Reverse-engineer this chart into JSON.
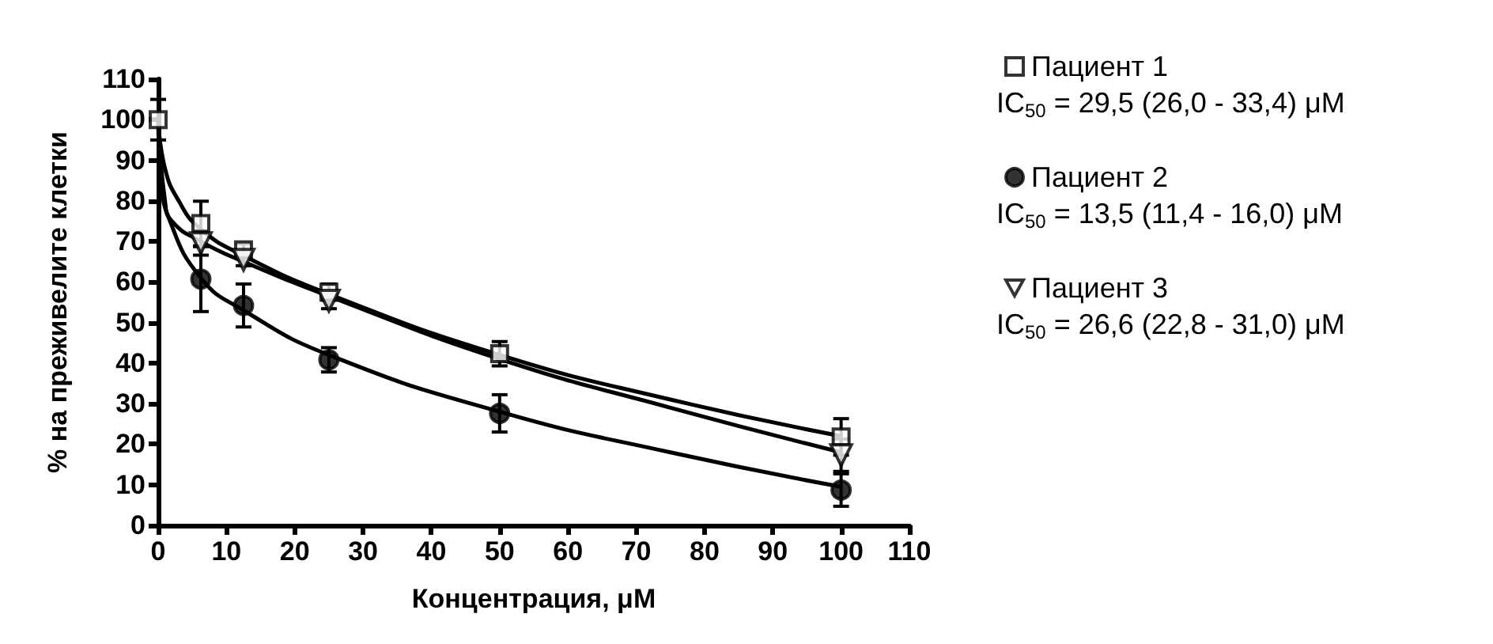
{
  "chart_data": {
    "type": "scatter",
    "xlabel": "Концентрация, μM",
    "ylabel": "% на преживелите клетки",
    "xlim": [
      0,
      110
    ],
    "xticks": [
      0,
      10,
      20,
      30,
      40,
      50,
      60,
      70,
      80,
      90,
      100,
      110
    ],
    "ylim": [
      0,
      110
    ],
    "yticks": [
      0,
      10,
      20,
      30,
      40,
      50,
      60,
      70,
      80,
      90,
      100,
      110
    ],
    "grid": false,
    "legend": "right",
    "x": [
      0,
      6.25,
      12.5,
      25,
      50,
      100
    ],
    "series": [
      {
        "name": "Пациент 1",
        "color": "#000000",
        "marker": "square",
        "values": [
          100,
          74.4,
          67.9,
          57.5,
          42.3,
          21.8
        ],
        "errors": [
          5,
          5.5,
          1.5,
          2,
          3,
          4.5
        ]
      },
      {
        "name": "Пациент 2",
        "color": "#000000",
        "marker": "circle",
        "values": [
          null,
          60.7,
          54.2,
          40.8,
          27.6,
          8.7
        ],
        "errors": [
          null,
          8,
          5.3,
          3,
          4.6,
          4
        ]
      },
      {
        "name": "Пациент 3",
        "color": "#000000",
        "marker": "triangle",
        "values": [
          null,
          69.6,
          65.5,
          55.4,
          null,
          17.3
        ],
        "errors": [
          null,
          3,
          1.5,
          2,
          null,
          4
        ]
      },
      {
        "type": "line",
        "color": "#000000",
        "x": [
          0,
          1,
          3,
          6.25,
          12.5,
          25,
          50,
          75,
          100
        ],
        "values": [
          100,
          88,
          80,
          73,
          66.5,
          57,
          42,
          31,
          22
        ]
      },
      {
        "type": "line",
        "color": "#000000",
        "x": [
          0,
          0.5,
          1.5,
          6.25,
          12.5,
          25,
          50,
          75,
          100
        ],
        "values": [
          100,
          85,
          76,
          61,
          53,
          42,
          28,
          18,
          9.5
        ]
      },
      {
        "type": "line",
        "color": "#000000",
        "x": [
          0,
          1,
          2,
          6.25,
          12.5,
          25,
          50,
          75,
          100
        ],
        "values": [
          100,
          80,
          75,
          70,
          65,
          56.5,
          41,
          29,
          18
        ]
      }
    ],
    "annotations": [
      "IC$_{50}$ = 29,5 (26,0 - 33,4) μM",
      "IC$_{50}$ = 13,5 (11,4 - 16,0) μM",
      "IC$_{50}$ = 26,6 (22,8 - 31,0) μM"
    ]
  }
}
